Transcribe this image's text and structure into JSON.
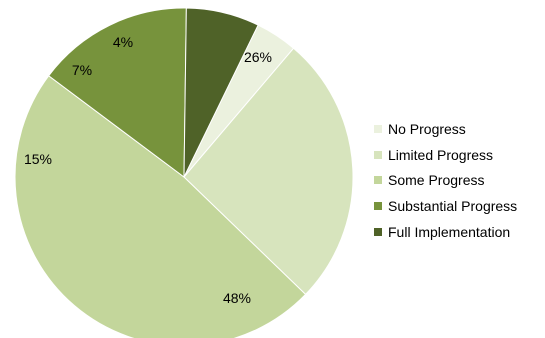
{
  "chart_data": {
    "type": "pie",
    "categories": [
      "No Progress",
      "Limited Progress",
      "Some Progress",
      "Substantial Progress",
      "Full Implementation"
    ],
    "values": [
      4,
      26,
      48,
      15,
      7
    ],
    "data_labels": [
      "4%",
      "26%",
      "48%",
      "15%",
      "7%"
    ],
    "colors": [
      "#ebf1de",
      "#d7e4bd",
      "#c3d69b",
      "#77933c",
      "#4f6228"
    ],
    "legend_position": "right",
    "slice_order": "clockwise from top"
  }
}
